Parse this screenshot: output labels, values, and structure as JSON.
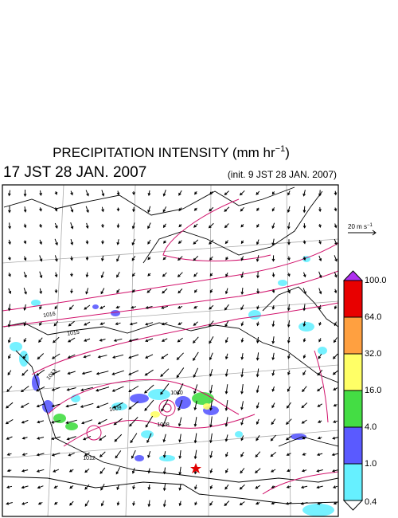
{
  "header": {
    "title": "PRECIPITATION INTENSITY (mm hr",
    "title_exponent": "−1",
    "title_end": ")",
    "valid_time": "17 JST 28 JAN. 2007",
    "init_time": "(init. 9 JST 28 JAN. 2007)"
  },
  "wind_scale": {
    "label": "20 m s",
    "exponent": "−1"
  },
  "colorbar": {
    "levels": [
      {
        "value": 100,
        "label": "100.0"
      },
      {
        "value": 64,
        "label": "64.0"
      },
      {
        "value": 32,
        "label": "32.0"
      },
      {
        "value": 16,
        "label": "16.0"
      },
      {
        "value": 4,
        "label": "4.0"
      },
      {
        "value": 1,
        "label": "1.0"
      },
      {
        "value": 0.4,
        "label": "0.4"
      }
    ],
    "colors": [
      "#b030f0",
      "#e80000",
      "#ffa040",
      "#ffff66",
      "#44dd44",
      "#5a5aff",
      "#66f0ff",
      "#ffffff"
    ]
  },
  "isobar_labels": [
    "1016",
    "1015",
    "1013",
    "1010",
    "1009",
    "1008",
    "1012"
  ]
}
